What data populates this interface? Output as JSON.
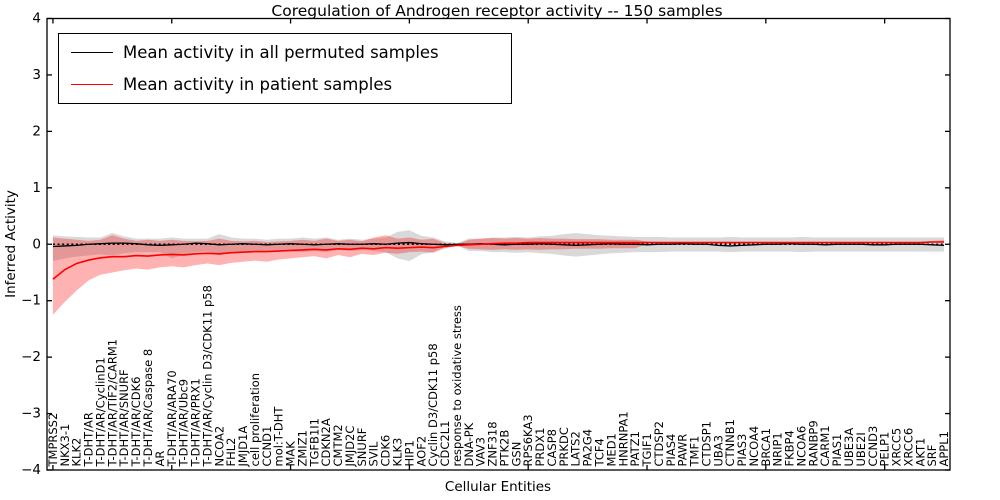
{
  "figure": {
    "title": "Coregulation of Androgen receptor activity -- 150 samples",
    "xlabel": "Cellular Entities",
    "ylabel": "Inferred Activity"
  },
  "legend": {
    "items": [
      {
        "label": "Mean activity in all permuted samples",
        "color": "#000000"
      },
      {
        "label": "Mean activity in patient samples",
        "color": "#ff0000"
      }
    ]
  },
  "chart_data": {
    "type": "line",
    "title": "Coregulation of Androgen receptor activity -- 150 samples",
    "xlabel": "Cellular Entities",
    "ylabel": "Inferred Activity",
    "ylim": [
      -4,
      4
    ],
    "yticks": [
      -4,
      -3,
      -2,
      -1,
      0,
      1,
      2,
      3,
      4
    ],
    "xtick_positions": [
      0,
      10,
      20,
      30,
      40,
      50,
      60,
      70
    ],
    "grid": false,
    "legend_position": "upper left",
    "zero_reference_line": 0,
    "categories": [
      "TMPRSS2",
      "NKX3-1",
      "KLK2",
      "T-DHT/AR",
      "T-DHT/AR/CyclinD1",
      "T-DHT/AR/TIF2/CARM1",
      "T-DHT/AR/SNURF",
      "T-DHT/AR/CDK6",
      "T-DHT/AR/Caspase 8",
      "AR",
      "T-DHT/AR/ARA70",
      "T-DHT/AR/Ubc9",
      "T-DHT/AR/PRX1",
      "T-DHT/AR/Cyclin D3/CDK11 p58",
      "NCOA2",
      "FHL2",
      "JMJD1A",
      "cell proliferation",
      "CCND1",
      "mol:T-DHT",
      "MAK",
      "ZMIZ1",
      "TGFB1I1",
      "CDKN2A",
      "CMTM2",
      "JMJD2C",
      "SNURF",
      "SVIL",
      "CDK6",
      "KLK3",
      "HIP1",
      "AOF2",
      "Cyclin D3/CDK11 p58",
      "CDC2L1",
      "response to oxidative stress",
      "DNA-PK",
      "VAV3",
      "ZNF318",
      "PTK2B",
      "GSN",
      "RPS6KA3",
      "PRDX1",
      "CASP8",
      "PRKDC",
      "LATS2",
      "PA2G4",
      "TCF4",
      "MED1",
      "HNRNPA1",
      "PATZ1",
      "TGIF1",
      "CTDSP2",
      "PIAS4",
      "PAWR",
      "TMF1",
      "CTDSP1",
      "UBA3",
      "CTNNB1",
      "PIAS3",
      "NCOA4",
      "BRCA1",
      "NRIP1",
      "FKBP4",
      "NCOA6",
      "RANBP9",
      "CARM1",
      "PIAS1",
      "UBE3A",
      "UBE2I",
      "CCND3",
      "PELP1",
      "XRCC5",
      "XRCC6",
      "AKT1",
      "SRF",
      "APPL1"
    ],
    "series": [
      {
        "id": "permuted-mean-line",
        "name": "Mean activity in all permuted samples",
        "color": "#000000",
        "line_style": "solid",
        "values": [
          -0.04,
          -0.03,
          -0.02,
          0,
          0.01,
          0.02,
          0.02,
          0.01,
          -0.01,
          -0.02,
          -0.01,
          0,
          0.02,
          0.01,
          -0.01,
          0,
          0.01,
          0,
          -0.01,
          0,
          0.01,
          0,
          -0.01,
          0,
          0.01,
          0,
          0,
          0.01,
          0,
          0.02,
          0.03,
          0.01,
          0,
          -0.01,
          0,
          0,
          0.01,
          0,
          -0.01,
          0,
          0,
          0.01,
          0,
          -0.01,
          -0.02,
          -0.01,
          0,
          0.01,
          0,
          0,
          -0.01,
          0,
          0,
          0.01,
          0,
          0,
          -0.02,
          -0.03,
          -0.02,
          -0.01,
          0,
          0,
          0.01,
          0,
          0,
          -0.01,
          0,
          0,
          0,
          -0.01,
          -0.01,
          0,
          0,
          0,
          -0.01,
          -0.02
        ]
      },
      {
        "id": "patient-mean-line",
        "name": "Mean activity in patient samples",
        "color": "#ff0000",
        "line_style": "solid",
        "values": [
          -0.62,
          -0.45,
          -0.34,
          -0.28,
          -0.24,
          -0.22,
          -0.22,
          -0.2,
          -0.21,
          -0.19,
          -0.18,
          -0.19,
          -0.17,
          -0.16,
          -0.17,
          -0.15,
          -0.14,
          -0.13,
          -0.13,
          -0.12,
          -0.11,
          -0.1,
          -0.09,
          -0.1,
          -0.08,
          -0.09,
          -0.07,
          -0.08,
          -0.06,
          -0.07,
          -0.06,
          -0.05,
          -0.06,
          -0.04,
          -0.02,
          -0.01,
          0,
          0.01,
          0.02,
          0.02,
          0.03,
          0.03,
          0.03,
          0.03,
          0.03,
          0.03,
          0.03,
          0.03,
          0.03,
          0.03,
          0.03,
          0.03,
          0.03,
          0.03,
          0.03,
          0.03,
          0.03,
          0.03,
          0.03,
          0.03,
          0.03,
          0.03,
          0.03,
          0.03,
          0.03,
          0.03,
          0.03,
          0.03,
          0.03,
          0.03,
          0.03,
          0.03,
          0.03,
          0.03,
          0.04,
          0.04
        ]
      }
    ],
    "bands": [
      {
        "id": "permuted-range-band",
        "name": "Permuted samples activity range",
        "color": "#000000",
        "opacity": 0.15,
        "hi": [
          0.16,
          0.14,
          0.13,
          0.12,
          0.12,
          0.2,
          0.14,
          0.1,
          0.1,
          0.1,
          0.12,
          0.1,
          0.1,
          0.1,
          0.18,
          0.12,
          0.1,
          0.1,
          0.08,
          0.1,
          0.1,
          0.12,
          0.1,
          0.12,
          0.08,
          0.1,
          0.08,
          0.1,
          0.12,
          0.22,
          0.25,
          0.15,
          0.12,
          0.05,
          0.02,
          0.1,
          0.1,
          0.12,
          0.12,
          0.13,
          0.12,
          0.14,
          0.15,
          0.18,
          0.2,
          0.18,
          0.16,
          0.15,
          0.14,
          0.13,
          0.13,
          0.13,
          0.12,
          0.12,
          0.12,
          0.12,
          0.12,
          0.13,
          0.12,
          0.12,
          0.12,
          0.12,
          0.12,
          0.13,
          0.12,
          0.12,
          0.12,
          0.12,
          0.12,
          0.12,
          0.12,
          0.12,
          0.12,
          0.12,
          0.12,
          0.12
        ],
        "lo": [
          -0.3,
          -0.25,
          -0.22,
          -0.2,
          -0.18,
          -0.2,
          -0.16,
          -0.14,
          -0.14,
          -0.14,
          -0.25,
          -0.18,
          -0.14,
          -0.13,
          -0.2,
          -0.15,
          -0.13,
          -0.12,
          -0.12,
          -0.12,
          -0.13,
          -0.14,
          -0.12,
          -0.14,
          -0.1,
          -0.12,
          -0.1,
          -0.12,
          -0.14,
          -0.25,
          -0.3,
          -0.18,
          -0.14,
          -0.05,
          -0.02,
          -0.12,
          -0.12,
          -0.14,
          -0.14,
          -0.15,
          -0.14,
          -0.16,
          -0.17,
          -0.2,
          -0.22,
          -0.2,
          -0.18,
          -0.16,
          -0.15,
          -0.14,
          -0.14,
          -0.14,
          -0.13,
          -0.13,
          -0.13,
          -0.13,
          -0.13,
          -0.14,
          -0.13,
          -0.13,
          -0.13,
          -0.13,
          -0.13,
          -0.14,
          -0.13,
          -0.13,
          -0.13,
          -0.13,
          -0.13,
          -0.13,
          -0.13,
          -0.13,
          -0.13,
          -0.13,
          -0.13,
          -0.13
        ]
      },
      {
        "id": "patient-range-band",
        "name": "Patient samples activity range",
        "color": "#ff0000",
        "opacity": 0.3,
        "hi": [
          0.12,
          0.1,
          0.08,
          0.06,
          0.08,
          0.16,
          0.1,
          0.06,
          0.08,
          0.06,
          0.08,
          0.06,
          0.05,
          0.06,
          0.1,
          0.06,
          0.05,
          0.06,
          0.04,
          0.05,
          0.06,
          0.08,
          0.06,
          0.1,
          0.06,
          0.08,
          0.05,
          0.12,
          0.16,
          0.1,
          0.12,
          0.08,
          0.1,
          0.02,
          0,
          0.08,
          0.1,
          0.11,
          0.1,
          0.11,
          0.1,
          0.11,
          0.1,
          0.1,
          0.09,
          0.09,
          0.09,
          0.08,
          0.08,
          0.08,
          0.05,
          0.04,
          0.04,
          0.04,
          0.04,
          0.04,
          0.04,
          0.04,
          0.04,
          0.04,
          0.04,
          0.04,
          0.04,
          0.04,
          0.04,
          0.04,
          0.04,
          0.04,
          0.04,
          0.04,
          0.04,
          0.04,
          0.04,
          0.04,
          0.06,
          0.07
        ],
        "lo": [
          -1.25,
          -1.02,
          -0.82,
          -0.64,
          -0.54,
          -0.5,
          -0.46,
          -0.43,
          -0.45,
          -0.41,
          -0.39,
          -0.41,
          -0.37,
          -0.34,
          -0.37,
          -0.33,
          -0.31,
          -0.29,
          -0.31,
          -0.27,
          -0.25,
          -0.23,
          -0.21,
          -0.25,
          -0.19,
          -0.23,
          -0.17,
          -0.19,
          -0.15,
          -0.17,
          -0.14,
          -0.13,
          -0.15,
          -0.07,
          -0.03,
          -0.08,
          -0.09,
          -0.1,
          -0.09,
          -0.1,
          -0.09,
          -0.1,
          -0.09,
          -0.09,
          -0.08,
          -0.08,
          -0.08,
          -0.07,
          -0.07,
          -0.07,
          0.01,
          0.02,
          0.02,
          0.02,
          0.02,
          0.02,
          0.01,
          0.01,
          0.01,
          0.02,
          0.02,
          0.02,
          0.02,
          0.02,
          0.02,
          0.02,
          0.02,
          0.02,
          0.02,
          0.02,
          0.02,
          0.02,
          0.02,
          0.02,
          0.03,
          0.03
        ]
      }
    ]
  }
}
